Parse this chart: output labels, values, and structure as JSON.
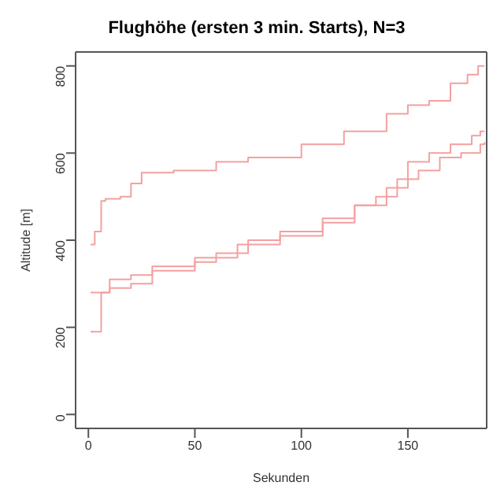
{
  "chart_data": {
    "type": "step",
    "title": "Flughöhe (ersten 3 min. Starts), N=3",
    "xlabel": "Sekunden",
    "ylabel": "Altitude [m]",
    "xlim": [
      -6,
      187
    ],
    "ylim": [
      -32,
      832
    ],
    "xticks": [
      0,
      50,
      100,
      150
    ],
    "yticks": [
      0,
      200,
      400,
      600,
      800
    ],
    "grid": false,
    "legend": false,
    "marker": "none",
    "line_style": "solid",
    "series": [
      {
        "color": "#f4a0a0",
        "x": [
          1,
          3,
          6,
          8,
          15,
          20,
          25,
          40,
          60,
          75,
          100,
          120,
          140,
          150,
          160,
          170,
          178,
          183,
          186
        ],
        "values": [
          390,
          420,
          490,
          495,
          500,
          530,
          555,
          560,
          580,
          590,
          620,
          650,
          690,
          710,
          720,
          760,
          780,
          800,
          800
        ]
      },
      {
        "color": "#f4a0a0",
        "x": [
          1,
          6,
          10,
          20,
          30,
          50,
          70,
          90,
          110,
          125,
          140,
          150,
          160,
          170,
          180,
          184,
          186
        ],
        "values": [
          190,
          280,
          310,
          320,
          340,
          360,
          390,
          410,
          440,
          480,
          520,
          580,
          600,
          620,
          640,
          650,
          650
        ]
      },
      {
        "color": "#f4a0a0",
        "x": [
          1,
          10,
          20,
          30,
          50,
          60,
          75,
          90,
          110,
          125,
          135,
          145,
          155,
          165,
          175,
          184,
          186
        ],
        "values": [
          280,
          290,
          300,
          330,
          350,
          370,
          400,
          420,
          450,
          480,
          500,
          540,
          560,
          590,
          600,
          620,
          625
        ]
      }
    ]
  }
}
